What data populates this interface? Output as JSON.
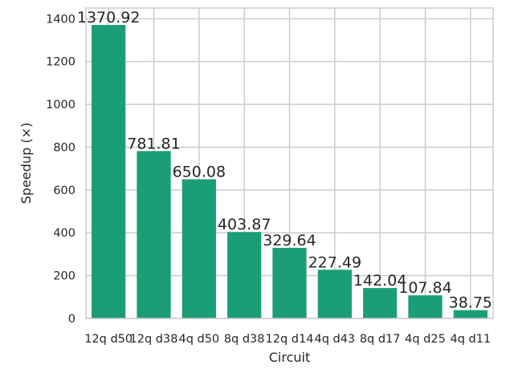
{
  "chart_data": {
    "type": "bar",
    "title": "",
    "xlabel": "Circuit",
    "ylabel": "Speedup (×)",
    "categories": [
      "12q d50",
      "12q d38",
      "4q d50",
      "8q d38",
      "12q d14",
      "4q d43",
      "8q d17",
      "4q d25",
      "4q d11"
    ],
    "values": [
      1370.92,
      781.81,
      650.08,
      403.87,
      329.64,
      227.49,
      142.04,
      107.84,
      38.75
    ],
    "data_labels": [
      "1370.92",
      "781.81",
      "650.08",
      "403.87",
      "329.64",
      "227.49",
      "142.04",
      "107.84",
      "38.75"
    ],
    "ylim": [
      0,
      1450
    ],
    "yticks": [
      0,
      200,
      400,
      600,
      800,
      1000,
      1200,
      1400
    ],
    "ytick_labels": [
      "0",
      "200",
      "400",
      "600",
      "800",
      "1000",
      "1200",
      "1400"
    ],
    "grid": true,
    "colors": {
      "bar": "#1b9e77",
      "grid": "#cccccc",
      "frame": "#cccccc"
    }
  }
}
